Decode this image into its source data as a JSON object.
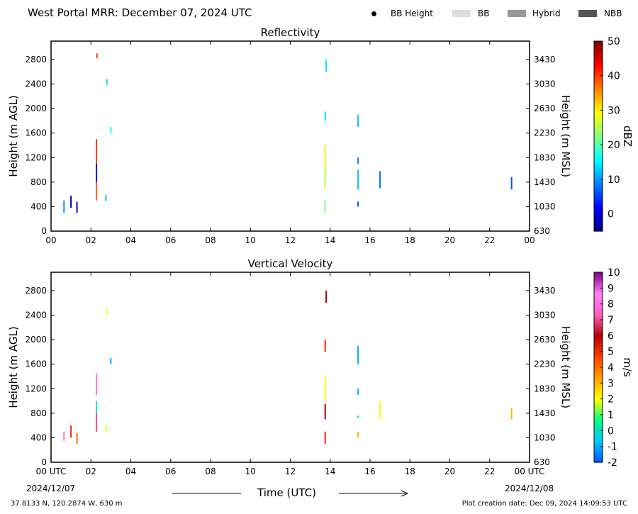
{
  "header": {
    "title": "West Portal MRR:  December 07, 2024 UTC",
    "legend": [
      {
        "label": "BB Height",
        "kind": "marker",
        "color": "#000000"
      },
      {
        "label": "BB",
        "kind": "swatch",
        "color": "#dddddd"
      },
      {
        "label": "Hybrid",
        "kind": "swatch",
        "color": "#999999"
      },
      {
        "label": "NBB",
        "kind": "swatch",
        "color": "#555555"
      }
    ]
  },
  "footer": {
    "coords": "37.8133 N, 120.2874 W, 630 m",
    "created": "Plot creation date: Dec 09, 2024 14:09:53 UTC",
    "xlabel": "Time (UTC)",
    "start_date": "2024/12/07",
    "end_date": "2024/12/08"
  },
  "chart_data": [
    {
      "type": "heatmap",
      "title": "Reflectivity",
      "xlabel": "Time (UTC)",
      "ylabel": "Height (m AGL)",
      "ylabel_right": "Height (m MSL)",
      "xlim": [
        0,
        24
      ],
      "ylim": [
        0,
        3100
      ],
      "x_ticks": [
        "00",
        "02",
        "04",
        "06",
        "08",
        "10",
        "12",
        "14",
        "16",
        "18",
        "20",
        "22",
        "00"
      ],
      "y_ticks": [
        0,
        400,
        800,
        1200,
        1600,
        2000,
        2400,
        2800
      ],
      "y_ticks_right": [
        "630",
        "1030",
        "1430",
        "1830",
        "2230",
        "2630",
        "3030",
        "3430"
      ],
      "colorbar": {
        "label": "dBZ",
        "min": -5,
        "max": 50,
        "ticks": [
          0,
          10,
          20,
          30,
          40,
          50
        ],
        "stops": [
          "#00007f",
          "#0000ff",
          "#0080ff",
          "#00ffff",
          "#80ff80",
          "#ffff00",
          "#ff8000",
          "#ff0000",
          "#7f0000"
        ]
      },
      "segments": [
        {
          "t": 0.65,
          "h0": 300,
          "h1": 500,
          "value": 10
        },
        {
          "t": 1.0,
          "h0": 380,
          "h1": 580,
          "value": -2
        },
        {
          "t": 1.3,
          "h0": 300,
          "h1": 480,
          "value": 0
        },
        {
          "t": 2.28,
          "h0": 500,
          "h1": 800,
          "value": 38
        },
        {
          "t": 2.28,
          "h0": 800,
          "h1": 1100,
          "value": 0
        },
        {
          "t": 2.28,
          "h0": 1100,
          "h1": 1500,
          "value": 40
        },
        {
          "t": 2.3,
          "h0": 2820,
          "h1": 2900,
          "value": 40
        },
        {
          "t": 2.75,
          "h0": 490,
          "h1": 590,
          "value": 12
        },
        {
          "t": 2.8,
          "h0": 2380,
          "h1": 2480,
          "value": 14
        },
        {
          "t": 3.0,
          "h0": 1600,
          "h1": 1700,
          "value": 16
        },
        {
          "t": 13.75,
          "h0": 300,
          "h1": 500,
          "value": 22
        },
        {
          "t": 13.75,
          "h0": 700,
          "h1": 1000,
          "value": 26
        },
        {
          "t": 13.75,
          "h0": 1000,
          "h1": 1400,
          "value": 30
        },
        {
          "t": 13.75,
          "h0": 1800,
          "h1": 1950,
          "value": 14
        },
        {
          "t": 13.8,
          "h0": 2600,
          "h1": 2800,
          "value": 14
        },
        {
          "t": 15.4,
          "h0": 400,
          "h1": 480,
          "value": 6
        },
        {
          "t": 15.4,
          "h0": 680,
          "h1": 1000,
          "value": 12
        },
        {
          "t": 15.4,
          "h0": 1100,
          "h1": 1200,
          "value": 8
        },
        {
          "t": 15.4,
          "h0": 1700,
          "h1": 1900,
          "value": 12
        },
        {
          "t": 16.5,
          "h0": 700,
          "h1": 980,
          "value": 8
        },
        {
          "t": 23.1,
          "h0": 680,
          "h1": 880,
          "value": 6
        }
      ]
    },
    {
      "type": "heatmap",
      "title": "Vertical Velocity",
      "xlabel": "Time (UTC)",
      "ylabel": "Height (m AGL)",
      "ylabel_right": "Height (m MSL)",
      "xlim": [
        0,
        24
      ],
      "ylim": [
        0,
        3100
      ],
      "x_ticks": [
        "00 UTC",
        "02",
        "04",
        "06",
        "08",
        "10",
        "12",
        "14",
        "16",
        "18",
        "20",
        "22",
        "00 UTC"
      ],
      "y_ticks": [
        0,
        400,
        800,
        1200,
        1600,
        2000,
        2400,
        2800
      ],
      "y_ticks_right": [
        "630",
        "1030",
        "1430",
        "1830",
        "2230",
        "2630",
        "3030",
        "3430"
      ],
      "colorbar": {
        "label": "m/s",
        "min": -2,
        "max": 10,
        "ticks": [
          -2,
          -1,
          0,
          1,
          2,
          3,
          4,
          5,
          6,
          7,
          8,
          9,
          10
        ],
        "stops": [
          "#0050ff",
          "#00c8ff",
          "#00ff80",
          "#ffff00",
          "#ffa000",
          "#ff4000",
          "#b40000",
          "#ff60c0",
          "#ff80ff",
          "#800080"
        ]
      },
      "segments": [
        {
          "t": 0.65,
          "h0": 350,
          "h1": 500,
          "value": 8
        },
        {
          "t": 1.0,
          "h0": 400,
          "h1": 600,
          "value": 5
        },
        {
          "t": 1.3,
          "h0": 300,
          "h1": 480,
          "value": 4
        },
        {
          "t": 2.28,
          "h0": 500,
          "h1": 800,
          "value": 7
        },
        {
          "t": 2.28,
          "h0": 800,
          "h1": 1000,
          "value": 0
        },
        {
          "t": 2.28,
          "h0": 1100,
          "h1": 1450,
          "value": 8
        },
        {
          "t": 2.75,
          "h0": 500,
          "h1": 600,
          "value": 2
        },
        {
          "t": 2.8,
          "h0": 2420,
          "h1": 2500,
          "value": 2
        },
        {
          "t": 3.0,
          "h0": 1600,
          "h1": 1700,
          "value": -1
        },
        {
          "t": 13.75,
          "h0": 300,
          "h1": 500,
          "value": 5
        },
        {
          "t": 13.75,
          "h0": 700,
          "h1": 950,
          "value": 6
        },
        {
          "t": 13.75,
          "h0": 1000,
          "h1": 1400,
          "value": 2
        },
        {
          "t": 13.75,
          "h0": 1800,
          "h1": 2000,
          "value": 5
        },
        {
          "t": 13.8,
          "h0": 2600,
          "h1": 2800,
          "value": 6
        },
        {
          "t": 15.4,
          "h0": 400,
          "h1": 500,
          "value": 3
        },
        {
          "t": 15.4,
          "h0": 720,
          "h1": 760,
          "value": 0
        },
        {
          "t": 15.4,
          "h0": 1100,
          "h1": 1200,
          "value": -1
        },
        {
          "t": 15.4,
          "h0": 1600,
          "h1": 1900,
          "value": -1
        },
        {
          "t": 16.5,
          "h0": 700,
          "h1": 1000,
          "value": 2
        },
        {
          "t": 23.1,
          "h0": 700,
          "h1": 880,
          "value": 3
        }
      ]
    }
  ]
}
